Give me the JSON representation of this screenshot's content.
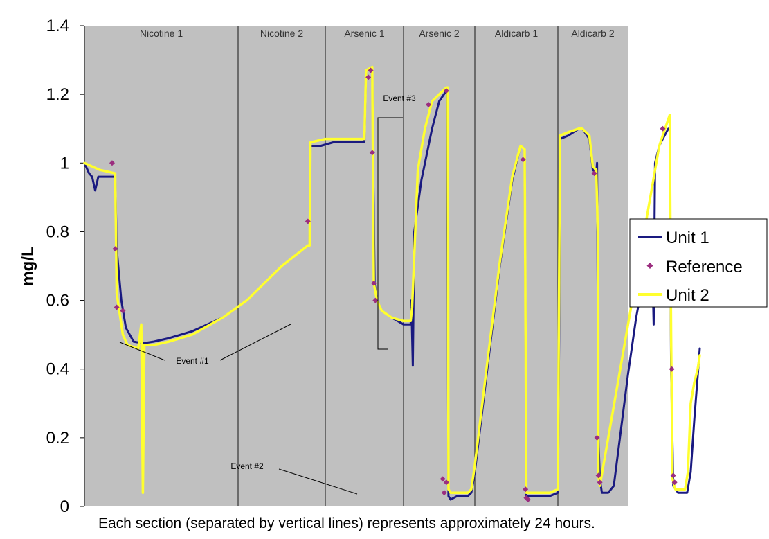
{
  "chart_data": {
    "type": "line",
    "title": "",
    "xlabel": "",
    "ylabel": "mg/L",
    "ylim": [
      0,
      1.4
    ],
    "yticks": [
      "0",
      "0.2",
      "0.4",
      "0.6",
      "0.8",
      "1",
      "1.2",
      "1.4"
    ],
    "grid": false,
    "legend_position": "right",
    "plot_background": "#c0c0c0",
    "sections": [
      "Nicotine 1",
      "Nicotine 2",
      "Arsenic 1",
      "Arsenic 2",
      "Aldicarb 1",
      "Aldicarb 2"
    ],
    "caption": "Each section (separated by vertical lines) represents approximately 24 hours.",
    "annotations": [
      {
        "label": "Event #1",
        "near_section": "Nicotine 1 / Nicotine 2"
      },
      {
        "label": "Event #2",
        "near_section": "Arsenic 1"
      },
      {
        "label": "Event #3",
        "near_section": "Arsenic 1"
      }
    ],
    "series": [
      {
        "name": "Unit 1",
        "kind": "line",
        "color": "#1a1a80",
        "points": [
          [
            0.0,
            1.0
          ],
          [
            0.03,
            0.97
          ],
          [
            0.05,
            0.96
          ],
          [
            0.07,
            0.92
          ],
          [
            0.09,
            0.96
          ],
          [
            0.2,
            0.96
          ],
          [
            0.21,
            0.75
          ],
          [
            0.24,
            0.6
          ],
          [
            0.27,
            0.52
          ],
          [
            0.32,
            0.48
          ],
          [
            0.38,
            0.475
          ],
          [
            0.45,
            0.48
          ],
          [
            0.55,
            0.49
          ],
          [
            0.7,
            0.51
          ],
          [
            0.9,
            0.55
          ],
          [
            1.1,
            0.6
          ],
          [
            1.3,
            0.65
          ],
          [
            1.5,
            0.7
          ],
          [
            1.7,
            0.74
          ],
          [
            1.8,
            0.76
          ],
          [
            1.82,
            0.76
          ],
          [
            1.83,
            1.05
          ],
          [
            1.95,
            1.05
          ],
          [
            2.1,
            1.06
          ],
          [
            2.3,
            1.06
          ],
          [
            2.5,
            1.06
          ],
          [
            2.52,
            1.27
          ],
          [
            2.6,
            1.27
          ],
          [
            2.61,
            1.03
          ],
          [
            2.63,
            0.65
          ],
          [
            2.66,
            0.6
          ],
          [
            2.72,
            0.57
          ],
          [
            2.85,
            0.55
          ],
          [
            3.0,
            0.53
          ],
          [
            3.1,
            0.53
          ],
          [
            3.11,
            0.6
          ],
          [
            3.13,
            0.41
          ],
          [
            3.15,
            0.8
          ],
          [
            3.25,
            0.95
          ],
          [
            3.4,
            1.1
          ],
          [
            3.5,
            1.18
          ],
          [
            3.6,
            1.21
          ],
          [
            3.61,
            1.2
          ],
          [
            3.63,
            0.03
          ],
          [
            3.66,
            0.02
          ],
          [
            3.75,
            0.03
          ],
          [
            3.9,
            0.03
          ],
          [
            3.95,
            0.04
          ],
          [
            4.0,
            0.1
          ],
          [
            4.15,
            0.4
          ],
          [
            4.3,
            0.7
          ],
          [
            4.45,
            0.95
          ],
          [
            4.55,
            1.05
          ],
          [
            4.6,
            1.04
          ],
          [
            4.62,
            0.03
          ],
          [
            4.7,
            0.03
          ],
          [
            4.9,
            0.03
          ],
          [
            5.0,
            0.04
          ],
          [
            5.02,
            0.55
          ],
          [
            5.03,
            1.07
          ],
          [
            5.15,
            1.08
          ],
          [
            5.3,
            1.1
          ],
          [
            5.35,
            1.1
          ],
          [
            5.45,
            1.07
          ],
          [
            5.5,
            0.98
          ],
          [
            5.55,
            0.97
          ],
          [
            5.56,
            1.0
          ],
          [
            5.58,
            0.2
          ],
          [
            5.6,
            0.08
          ],
          [
            5.63,
            0.04
          ],
          [
            5.72,
            0.04
          ],
          [
            5.8,
            0.06
          ],
          [
            5.9,
            0.22
          ],
          [
            6.0,
            0.38
          ],
          [
            6.12,
            0.55
          ],
          [
            6.22,
            0.66
          ],
          [
            6.3,
            0.71
          ],
          [
            6.35,
            0.72
          ],
          [
            6.37,
            0.53
          ],
          [
            6.39,
            1.0
          ],
          [
            6.45,
            1.05
          ],
          [
            6.5,
            1.07
          ],
          [
            6.58,
            1.1
          ],
          [
            6.6,
            1.1
          ],
          [
            6.62,
            0.4
          ],
          [
            6.65,
            0.06
          ],
          [
            6.72,
            0.04
          ],
          [
            6.78,
            0.04
          ],
          [
            6.85,
            0.04
          ],
          [
            6.9,
            0.1
          ],
          [
            6.95,
            0.25
          ],
          [
            7.0,
            0.38
          ],
          [
            7.03,
            0.46
          ]
        ]
      },
      {
        "name": "Reference",
        "kind": "markers",
        "color": "#9b2d7f",
        "points": [
          [
            0.18,
            1.0
          ],
          [
            0.2,
            0.75
          ],
          [
            0.21,
            0.58
          ],
          [
            0.25,
            0.57
          ],
          [
            1.8,
            0.83
          ],
          [
            2.55,
            1.25
          ],
          [
            2.58,
            1.27
          ],
          [
            2.6,
            1.03
          ],
          [
            2.62,
            0.65
          ],
          [
            2.64,
            0.6
          ],
          [
            3.35,
            1.17
          ],
          [
            3.6,
            1.21
          ],
          [
            3.55,
            0.08
          ],
          [
            3.57,
            0.04
          ],
          [
            3.6,
            0.07
          ],
          [
            4.58,
            1.01
          ],
          [
            4.61,
            0.05
          ],
          [
            4.62,
            0.025
          ],
          [
            4.64,
            0.02
          ],
          [
            5.52,
            0.97
          ],
          [
            5.56,
            0.2
          ],
          [
            5.58,
            0.09
          ],
          [
            5.6,
            0.07
          ],
          [
            6.5,
            1.1
          ],
          [
            6.63,
            0.4
          ],
          [
            6.65,
            0.09
          ],
          [
            6.67,
            0.07
          ]
        ]
      },
      {
        "name": "Unit 2",
        "kind": "line",
        "color": "#ffff2e",
        "points": [
          [
            0.0,
            1.0
          ],
          [
            0.1,
            0.98
          ],
          [
            0.2,
            0.97
          ],
          [
            0.21,
            0.62
          ],
          [
            0.25,
            0.5
          ],
          [
            0.28,
            0.47
          ],
          [
            0.35,
            0.46
          ],
          [
            0.37,
            0.53
          ],
          [
            0.38,
            0.04
          ],
          [
            0.39,
            0.47
          ],
          [
            0.45,
            0.47
          ],
          [
            0.55,
            0.48
          ],
          [
            0.7,
            0.5
          ],
          [
            0.9,
            0.55
          ],
          [
            1.1,
            0.6
          ],
          [
            1.3,
            0.65
          ],
          [
            1.5,
            0.7
          ],
          [
            1.7,
            0.74
          ],
          [
            1.8,
            0.76
          ],
          [
            1.82,
            0.76
          ],
          [
            1.83,
            1.06
          ],
          [
            2.0,
            1.07
          ],
          [
            2.3,
            1.07
          ],
          [
            2.5,
            1.07
          ],
          [
            2.52,
            1.27
          ],
          [
            2.6,
            1.28
          ],
          [
            2.62,
            0.65
          ],
          [
            2.66,
            0.6
          ],
          [
            2.72,
            0.57
          ],
          [
            2.85,
            0.55
          ],
          [
            3.0,
            0.54
          ],
          [
            3.1,
            0.54
          ],
          [
            3.12,
            0.58
          ],
          [
            3.2,
            0.98
          ],
          [
            3.3,
            1.1
          ],
          [
            3.4,
            1.18
          ],
          [
            3.5,
            1.2
          ],
          [
            3.6,
            1.22
          ],
          [
            3.62,
            1.22
          ],
          [
            3.63,
            0.05
          ],
          [
            3.66,
            0.04
          ],
          [
            3.75,
            0.04
          ],
          [
            3.9,
            0.04
          ],
          [
            3.95,
            0.05
          ],
          [
            4.0,
            0.12
          ],
          [
            4.15,
            0.42
          ],
          [
            4.3,
            0.71
          ],
          [
            4.45,
            0.96
          ],
          [
            4.55,
            1.05
          ],
          [
            4.6,
            1.04
          ],
          [
            4.62,
            0.04
          ],
          [
            4.7,
            0.04
          ],
          [
            4.9,
            0.04
          ],
          [
            5.0,
            0.05
          ],
          [
            5.03,
            1.08
          ],
          [
            5.15,
            1.09
          ],
          [
            5.3,
            1.1
          ],
          [
            5.35,
            1.1
          ],
          [
            5.45,
            1.08
          ],
          [
            5.5,
            0.99
          ],
          [
            5.55,
            0.98
          ],
          [
            5.57,
            0.8
          ],
          [
            5.58,
            0.09
          ],
          [
            5.6,
            0.06
          ],
          [
            6.45,
            1.05
          ],
          [
            6.5,
            1.08
          ],
          [
            6.6,
            1.14
          ],
          [
            6.62,
            0.5
          ],
          [
            6.64,
            0.08
          ],
          [
            6.68,
            0.05
          ],
          [
            6.75,
            0.05
          ],
          [
            6.82,
            0.05
          ],
          [
            6.86,
            0.1
          ],
          [
            6.9,
            0.3
          ],
          [
            6.95,
            0.36
          ],
          [
            7.0,
            0.4
          ],
          [
            7.03,
            0.44
          ]
        ]
      }
    ]
  }
}
